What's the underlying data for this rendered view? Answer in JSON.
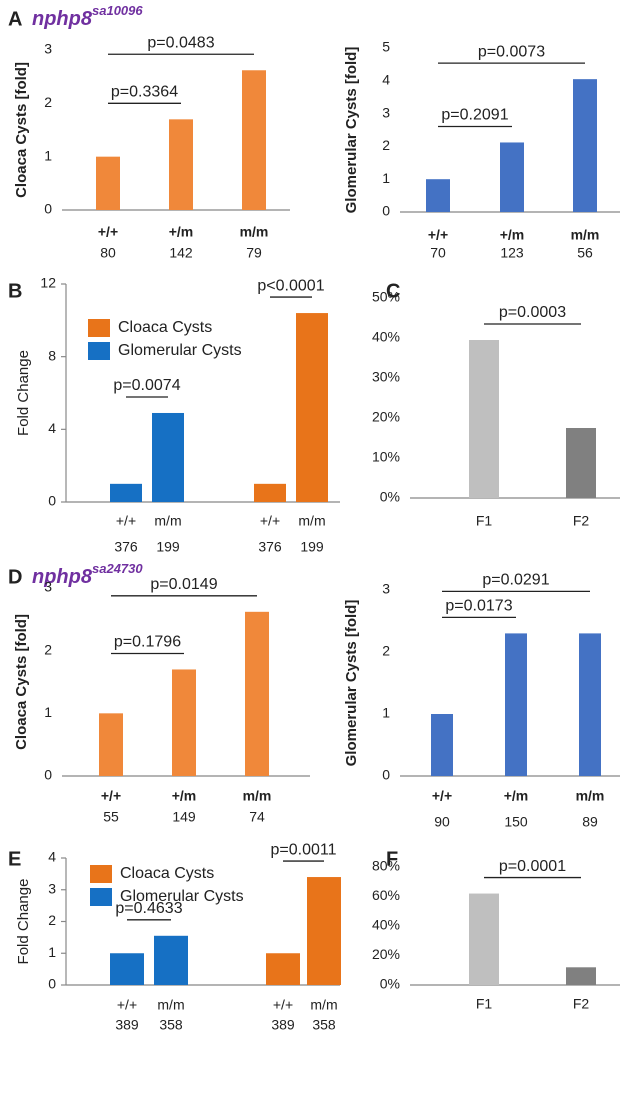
{
  "chart_data": [
    {
      "type": "bar",
      "panel": "A",
      "title": "nphp8",
      "title_sup": "sa10096",
      "ylabel": "Cloaca Cysts [fold]",
      "categories": [
        "+/+",
        "+/m",
        "m/m"
      ],
      "n_labels": [
        80,
        142,
        79
      ],
      "series": [
        {
          "color": "#f0883a",
          "values": [
            1,
            1.7,
            2.62
          ]
        }
      ],
      "ylim": [
        0,
        3
      ],
      "yticks": [
        0,
        1,
        2,
        3
      ],
      "annotations": [
        {
          "text": "p=0.3364",
          "from": 0,
          "to": 1
        },
        {
          "text": "p=0.0483",
          "from": 0,
          "to": 2
        }
      ]
    },
    {
      "type": "bar",
      "ylabel": "Glomerular Cysts [fold]",
      "categories": [
        "+/+",
        "+/m",
        "m/m"
      ],
      "n_labels": [
        70,
        123,
        56
      ],
      "series": [
        {
          "color": "#4472c4",
          "values": [
            1,
            2.12,
            4.05
          ]
        }
      ],
      "ylim": [
        0,
        5
      ],
      "yticks": [
        0,
        1,
        2,
        3,
        4,
        5
      ],
      "annotations": [
        {
          "text": "p=0.2091",
          "from": 0,
          "to": 1
        },
        {
          "text": "p=0.0073",
          "from": 0,
          "to": 2
        }
      ]
    },
    {
      "type": "bar",
      "panel": "B",
      "ylabel": "Fold Change",
      "categories": [
        "+/+",
        "m/m",
        "+/+",
        "m/m"
      ],
      "n_labels": [
        376,
        199,
        376,
        199
      ],
      "series": [
        {
          "name": "Cloaca Cysts",
          "color": "#e8741a",
          "values": [
            null,
            null,
            1,
            10.4
          ]
        },
        {
          "name": "Glomerular Cysts",
          "color": "#1670c4",
          "values": [
            1,
            4.9,
            null,
            null
          ]
        }
      ],
      "ylim": [
        0,
        12
      ],
      "yticks": [
        0,
        4,
        8,
        12
      ],
      "legend": "upper left",
      "annotations": [
        {
          "text": "p=0.0074",
          "from": 0,
          "to": 1
        },
        {
          "text": "p<0.0001",
          "from": 2,
          "to": 3
        }
      ]
    },
    {
      "type": "bar",
      "panel": "C",
      "categories": [
        "F1",
        "F2"
      ],
      "series": [
        {
          "colors": [
            "#bfbfbf",
            "#808080"
          ],
          "values": [
            39.5,
            17.5
          ]
        }
      ],
      "ylim": [
        0,
        50
      ],
      "yticks": [
        {
          "value": 0,
          "label": "0%"
        },
        {
          "value": 10,
          "label": "10%"
        },
        {
          "value": 20,
          "label": "20%"
        },
        {
          "value": 30,
          "label": "30%"
        },
        {
          "value": 40,
          "label": "40%"
        },
        {
          "value": 50,
          "label": "50%"
        }
      ],
      "annotations": [
        {
          "text": "p=0.0003",
          "from": 0,
          "to": 1
        }
      ]
    },
    {
      "type": "bar",
      "panel": "D",
      "title": "nphp8",
      "title_sup": "sa24730",
      "ylabel": "Cloaca Cysts [fold]",
      "categories": [
        "+/+",
        "+/m",
        "m/m"
      ],
      "n_labels": [
        55,
        149,
        74
      ],
      "series": [
        {
          "color": "#f0883a",
          "values": [
            1,
            1.7,
            2.62
          ]
        }
      ],
      "ylim": [
        0,
        3
      ],
      "yticks": [
        0,
        1,
        2,
        3
      ],
      "annotations": [
        {
          "text": "p=0.1796",
          "from": 0,
          "to": 1
        },
        {
          "text": "p=0.0149",
          "from": 0,
          "to": 2
        }
      ]
    },
    {
      "type": "bar",
      "ylabel": "Glomerular Cysts [fold]",
      "categories": [
        "+/+",
        "+/m",
        "m/m"
      ],
      "n_labels": [
        90,
        150,
        89
      ],
      "series": [
        {
          "color": "#4472c4",
          "values": [
            1,
            2.3,
            2.3
          ]
        }
      ],
      "ylim": [
        0,
        3
      ],
      "yticks": [
        0,
        1,
        2,
        3
      ],
      "annotations": [
        {
          "text": "p=0.0173",
          "from": 0,
          "to": 1
        },
        {
          "text": "p=0.0291",
          "from": 0,
          "to": 2
        }
      ]
    },
    {
      "type": "bar",
      "panel": "E",
      "ylabel": "Fold Change",
      "categories": [
        "+/+",
        "m/m",
        "+/+",
        "m/m"
      ],
      "n_labels": [
        389,
        358,
        389,
        358
      ],
      "series": [
        {
          "name": "Cloaca Cysts",
          "color": "#e8741a",
          "values": [
            null,
            null,
            1,
            3.4
          ]
        },
        {
          "name": "Glomerular Cysts",
          "color": "#1670c4",
          "values": [
            1,
            1.55,
            null,
            null
          ]
        }
      ],
      "ylim": [
        0,
        4
      ],
      "yticks": [
        0,
        1,
        2,
        3,
        4
      ],
      "legend": "upper left",
      "annotations": [
        {
          "text": "p=0.4633",
          "from": 0,
          "to": 1
        },
        {
          "text": "p=0.0011",
          "from": 2,
          "to": 3
        }
      ]
    },
    {
      "type": "bar",
      "panel": "F",
      "categories": [
        "F1",
        "F2"
      ],
      "series": [
        {
          "colors": [
            "#bfbfbf",
            "#808080"
          ],
          "values": [
            62,
            12
          ]
        }
      ],
      "ylim": [
        0,
        80
      ],
      "yticks": [
        {
          "value": 0,
          "label": "0%"
        },
        {
          "value": 20,
          "label": "20%"
        },
        {
          "value": 40,
          "label": "40%"
        },
        {
          "value": 60,
          "label": "60%"
        },
        {
          "value": 80,
          "label": "80%"
        }
      ],
      "annotations": [
        {
          "text": "p=0.0001",
          "from": 0,
          "to": 1
        }
      ]
    }
  ]
}
